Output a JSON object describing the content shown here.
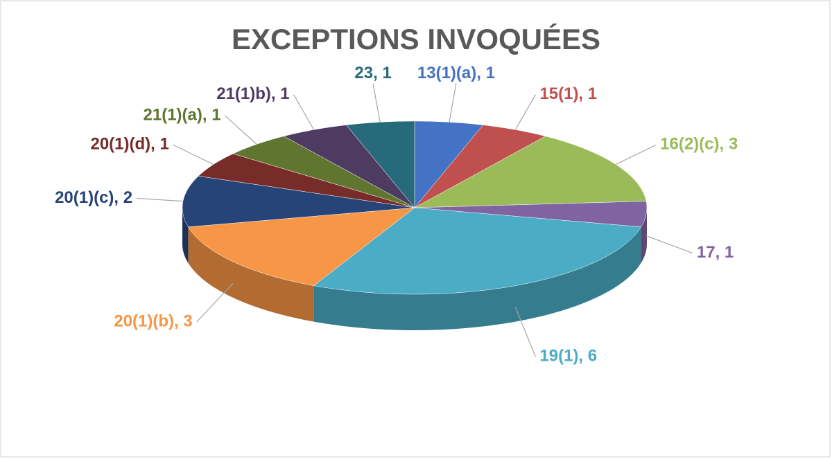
{
  "chart_data": {
    "type": "pie3d",
    "title": "EXCEPTIONS INVOQUÉES",
    "labels": [
      "13(1)(a), 1",
      "15(1), 1",
      "16(2)(c), 3",
      "17, 1",
      "19(1), 6",
      "20(1)(b), 3",
      "20(1)(c), 2",
      "20(1)(d), 1",
      "21(1)(a), 1",
      "21(1)b), 1",
      "23, 1"
    ],
    "values": [
      1,
      1,
      3,
      1,
      6,
      3,
      2,
      1,
      1,
      1,
      1
    ],
    "colors": [
      "#4472c4",
      "#c0504d",
      "#9bbb59",
      "#8064a2",
      "#4bacc6",
      "#f79646",
      "#264478",
      "#772c2a",
      "#5f7530",
      "#4d3b62",
      "#276a7c"
    ]
  }
}
